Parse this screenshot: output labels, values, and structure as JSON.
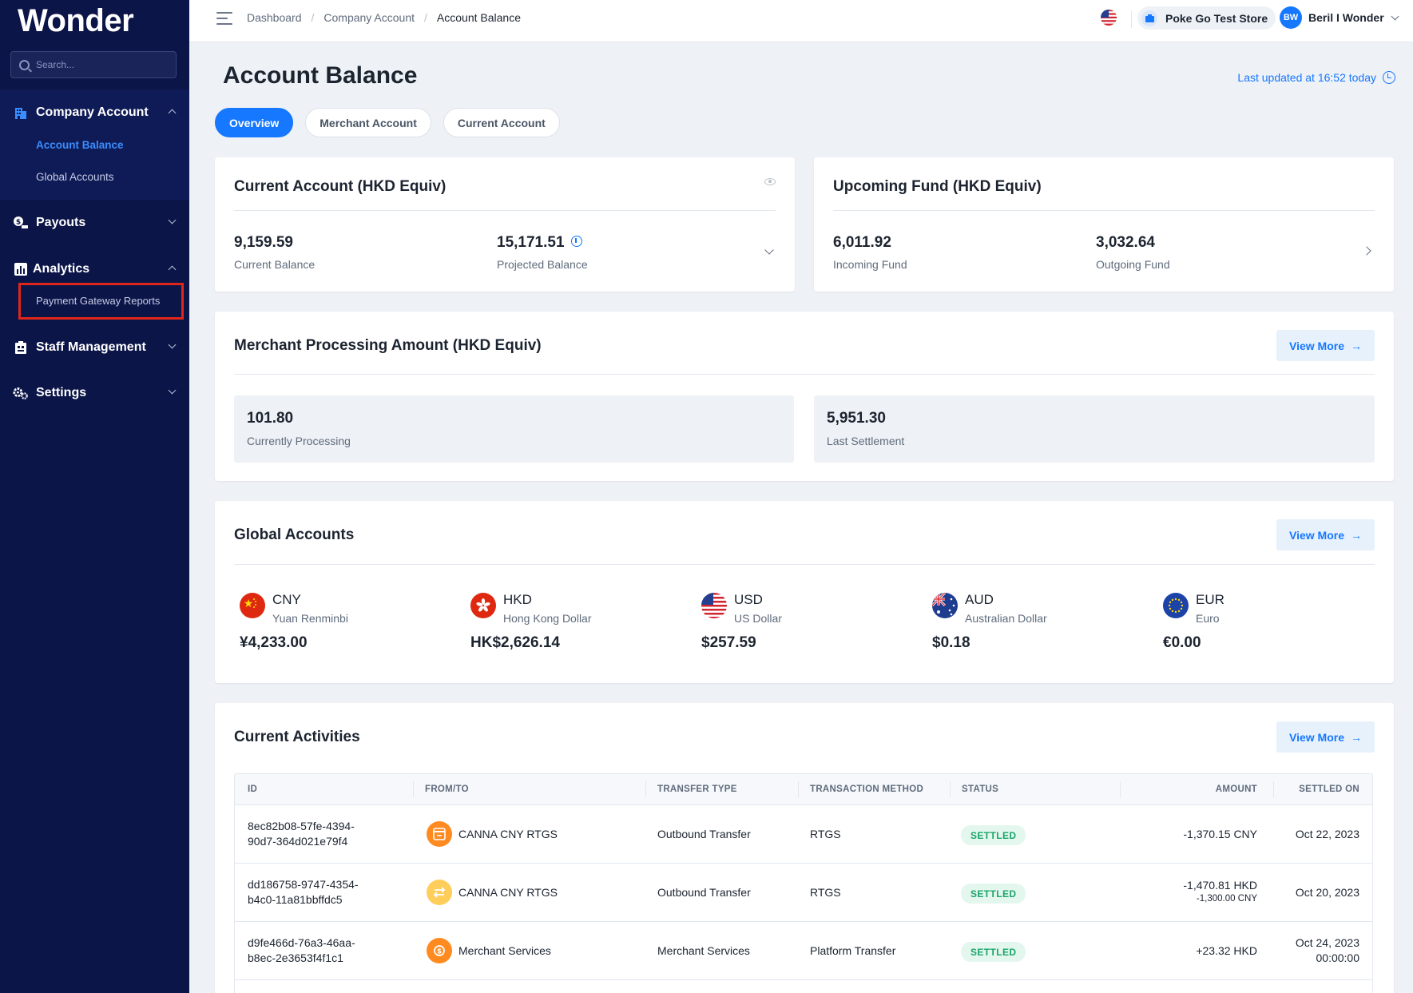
{
  "sidebar": {
    "logo": "Wonder",
    "search_placeholder": "Search...",
    "company_account": "Company Account",
    "account_balance": "Account Balance",
    "global_accounts": "Global Accounts",
    "payouts": "Payouts",
    "analytics": "Analytics",
    "payment_gateway_reports": "Payment Gateway Reports",
    "staff_management": "Staff Management",
    "settings": "Settings"
  },
  "header": {
    "breadcrumb": [
      "Dashboard",
      "Company Account",
      "Account Balance"
    ],
    "store_name": "Poke Go Test Store",
    "user_initials": "BW",
    "user_name": "Beril I Wonder"
  },
  "page": {
    "title": "Account Balance",
    "last_updated": "Last updated at 16:52 today",
    "tabs": [
      "Overview",
      "Merchant Account",
      "Current Account"
    ]
  },
  "current_account": {
    "title": "Current Account (HKD Equiv)",
    "current_balance": "9,159.59",
    "current_balance_label": "Current Balance",
    "projected_balance": "15,171.51",
    "projected_balance_label": "Projected Balance"
  },
  "upcoming_fund": {
    "title": "Upcoming Fund (HKD Equiv)",
    "incoming": "6,011.92",
    "incoming_label": "Incoming Fund",
    "outgoing": "3,032.64",
    "outgoing_label": "Outgoing Fund"
  },
  "merchant_processing": {
    "title": "Merchant Processing Amount (HKD Equiv)",
    "view_more": "View More",
    "currently_processing": "101.80",
    "currently_processing_label": "Currently Processing",
    "last_settlement": "5,951.30",
    "last_settlement_label": "Last Settlement"
  },
  "global_accounts": {
    "title": "Global Accounts",
    "view_more": "View More",
    "currencies": [
      {
        "code": "CNY",
        "name": "Yuan Renminbi",
        "amount": "¥4,233.00"
      },
      {
        "code": "HKD",
        "name": "Hong Kong Dollar",
        "amount": "HK$2,626.14"
      },
      {
        "code": "USD",
        "name": "US Dollar",
        "amount": "$257.59"
      },
      {
        "code": "AUD",
        "name": "Australian Dollar",
        "amount": "$0.18"
      },
      {
        "code": "EUR",
        "name": "Euro",
        "amount": "€0.00"
      }
    ]
  },
  "activities": {
    "title": "Current Activities",
    "view_more": "View More",
    "columns": [
      "ID",
      "FROM/TO",
      "TRANSFER TYPE",
      "TRANSACTION METHOD",
      "STATUS",
      "AMOUNT",
      "SETTLED ON"
    ],
    "rows": [
      {
        "id_1": "8ec82b08-57fe-4394-",
        "id_2": "90d7-364d021e79f4",
        "from_to": "CANNA CNY RTGS",
        "transfer_type": "Outbound Transfer",
        "method": "RTGS",
        "status": "SETTLED",
        "amount": "-1,370.15 CNY",
        "amount_sub": "",
        "settled_1": "Oct 22, 2023",
        "settled_2": ""
      },
      {
        "id_1": "dd186758-9747-4354-",
        "id_2": "b4c0-11a81bbffdc5",
        "from_to": "CANNA CNY RTGS",
        "transfer_type": "Outbound Transfer",
        "method": "RTGS",
        "status": "SETTLED",
        "amount": "-1,470.81 HKD",
        "amount_sub": "-1,300.00 CNY",
        "settled_1": "Oct 20, 2023",
        "settled_2": ""
      },
      {
        "id_1": "d9fe466d-76a3-46aa-",
        "id_2": "b8ec-2e3653f4f1c1",
        "from_to": "Merchant Services",
        "transfer_type": "Merchant Services",
        "method": "Platform Transfer",
        "status": "SETTLED",
        "amount": "+23.32 HKD",
        "amount_sub": "",
        "settled_1": "Oct 24, 2023",
        "settled_2": "00:00:00"
      }
    ]
  },
  "colors": {
    "sidebar_bg": "#0b1548",
    "accent": "#1677ff",
    "settled_green": "#1aa56a",
    "highlight_red": "#e0261b"
  }
}
